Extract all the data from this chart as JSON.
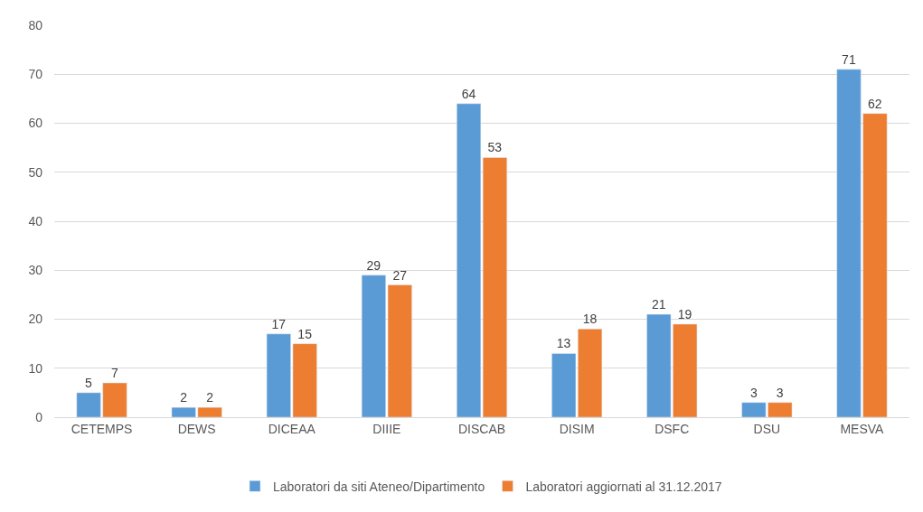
{
  "chart_data": {
    "type": "bar",
    "categories": [
      "CETEMPS",
      "DEWS",
      "DICEAA",
      "DIIIE",
      "DISCAB",
      "DISIM",
      "DSFC",
      "DSU",
      "MESVA"
    ],
    "series": [
      {
        "name": "Laboratori da siti Ateneo/Dipartimento",
        "color": "#5b9bd5",
        "values": [
          5,
          2,
          17,
          29,
          64,
          13,
          21,
          3,
          71
        ]
      },
      {
        "name": "Laboratori aggiornati al 31.12.2017",
        "color": "#ed7d31",
        "values": [
          7,
          2,
          15,
          27,
          53,
          18,
          19,
          3,
          62
        ]
      }
    ],
    "ylim": [
      0,
      80
    ],
    "yticks": [
      0,
      10,
      20,
      30,
      40,
      50,
      60,
      70,
      80
    ],
    "grid": "y",
    "legend": "bottom",
    "data_labels": true
  }
}
